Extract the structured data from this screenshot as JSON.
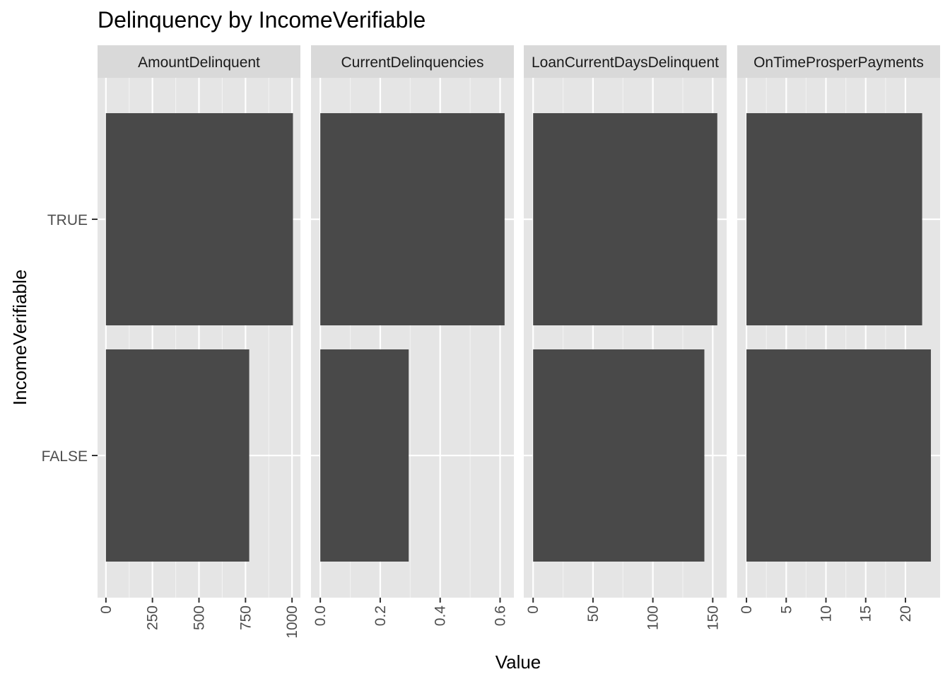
{
  "chart_data": {
    "type": "bar",
    "orientation": "horizontal",
    "title": "Delinquency by IncomeVerifiable",
    "xlabel": "Value",
    "ylabel": "IncomeVerifiable",
    "categories": [
      "TRUE",
      "FALSE"
    ],
    "grid": true,
    "panel_background": "#e5e5e5",
    "strip_background": "#d9d9d9",
    "bar_color": "#494949",
    "facets": [
      {
        "name": "AmountDelinquent",
        "xlim": [
          -45,
          1045
        ],
        "ticks": [
          0,
          250,
          500,
          750,
          1000
        ],
        "tick_labels": [
          "0",
          "250",
          "500",
          "750",
          "1000"
        ],
        "values": {
          "TRUE": 1005,
          "FALSE": 770
        }
      },
      {
        "name": "CurrentDelinquencies",
        "xlim": [
          -0.031,
          0.646
        ],
        "ticks": [
          0,
          0.2,
          0.4,
          0.6
        ],
        "tick_labels": [
          "0.0",
          "0.2",
          "0.4",
          "0.6"
        ],
        "values": {
          "TRUE": 0.615,
          "FALSE": 0.295
        }
      },
      {
        "name": "LoanCurrentDaysDelinquent",
        "xlim": [
          -7.8,
          161.6
        ],
        "ticks": [
          0,
          50,
          100,
          150
        ],
        "tick_labels": [
          "0",
          "50",
          "100",
          "150"
        ],
        "values": {
          "TRUE": 153.8,
          "FALSE": 143
        }
      },
      {
        "name": "OnTimeProsperPayments",
        "xlim": [
          -1.16,
          24.36
        ],
        "ticks": [
          0,
          5,
          10,
          15,
          20
        ],
        "tick_labels": [
          "0",
          "5",
          "10",
          "15",
          "20"
        ],
        "values": {
          "TRUE": 22.1,
          "FALSE": 23.2
        }
      }
    ]
  }
}
